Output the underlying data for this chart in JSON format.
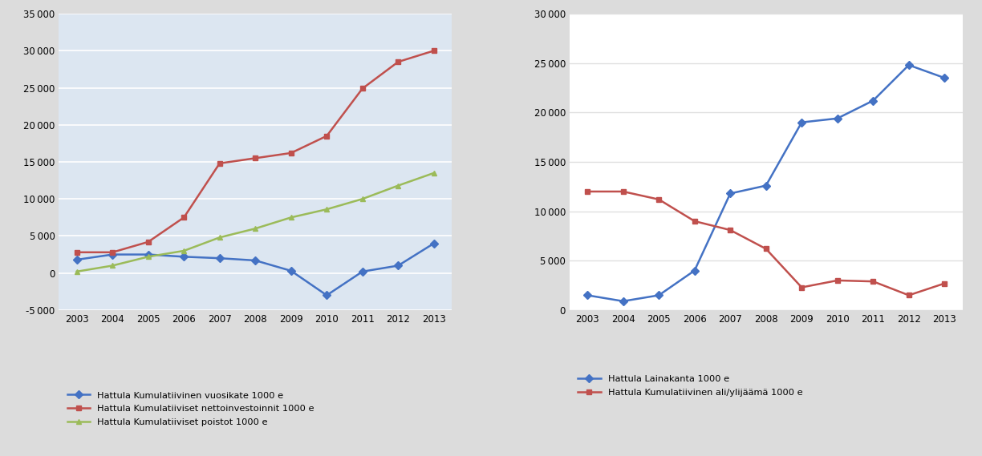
{
  "years": [
    2003,
    2004,
    2005,
    2006,
    2007,
    2008,
    2009,
    2010,
    2011,
    2012,
    2013
  ],
  "left_vuosikate": [
    1800,
    2500,
    2500,
    2200,
    2000,
    1700,
    300,
    -3000,
    200,
    1000,
    4000
  ],
  "left_nettoinvestoinnit": [
    2800,
    2800,
    4200,
    7500,
    14800,
    15500,
    16200,
    18500,
    24900,
    28500,
    30000
  ],
  "left_poistot": [
    200,
    1000,
    2200,
    3000,
    4800,
    6000,
    7500,
    8600,
    10000,
    11800,
    13500
  ],
  "right_lainakanta": [
    1500,
    900,
    1500,
    4000,
    11800,
    12600,
    19000,
    19400,
    21200,
    24800,
    23500
  ],
  "right_alijaaama": [
    12000,
    12000,
    11200,
    9000,
    8100,
    6200,
    2300,
    3000,
    2900,
    1500,
    2700
  ],
  "left_ylim": [
    -5000,
    35000
  ],
  "left_yticks": [
    -5000,
    0,
    5000,
    10000,
    15000,
    20000,
    25000,
    30000,
    35000
  ],
  "right_ylim": [
    0,
    30000
  ],
  "right_yticks": [
    0,
    5000,
    10000,
    15000,
    20000,
    25000,
    30000
  ],
  "color_blue": "#4472C4",
  "color_red": "#C0504D",
  "color_green": "#9BBB59",
  "bg_color": "#DCE6F1",
  "grid_color": "#FFFFFF",
  "legend_left": [
    "Hattula Kumulatiivinen vuosikate 1000 e",
    "Hattula Kumulatiiviset nettoinvestoinnit 1000 e",
    "Hattula Kumulatiiviset poistot 1000 e"
  ],
  "legend_right": [
    "Hattula Lainakanta 1000 e",
    "Hattula Kumulatiivinen ali/ylijäämä 1000 e"
  ]
}
